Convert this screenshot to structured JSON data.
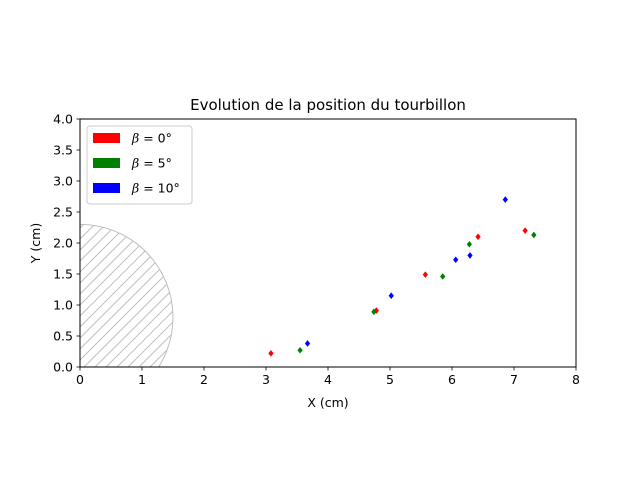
{
  "chart_data": {
    "type": "scatter",
    "title": "Evolution de la position du tourbillon",
    "xlabel": "X (cm)",
    "ylabel": "Y (cm)",
    "xlim": [
      0,
      8
    ],
    "ylim": [
      0,
      4.0
    ],
    "x_ticks": [
      "0",
      "1",
      "2",
      "3",
      "4",
      "5",
      "6",
      "7",
      "8"
    ],
    "y_ticks": [
      "0.0",
      "0.5",
      "1.0",
      "1.5",
      "2.0",
      "2.5",
      "3.0",
      "3.5",
      "4.0"
    ],
    "grid": false,
    "legend_position": "top-left",
    "obstacle": {
      "shape": "hatched circle",
      "center": [
        0,
        0.8
      ],
      "radius": 1.5,
      "color": "#bfbfbf"
    },
    "series": [
      {
        "name": "β = 0°",
        "name_symbol": "β",
        "name_suffix": " = 0°",
        "color": "#ff0000",
        "points": [
          [
            3.08,
            0.22
          ],
          [
            4.78,
            0.91
          ],
          [
            5.57,
            1.49
          ],
          [
            6.42,
            2.1
          ],
          [
            7.18,
            2.2
          ]
        ]
      },
      {
        "name": "β = 5°",
        "name_symbol": "β",
        "name_suffix": " = 5°",
        "color": "#008000",
        "points": [
          [
            3.55,
            0.27
          ],
          [
            4.74,
            0.89
          ],
          [
            5.85,
            1.46
          ],
          [
            6.28,
            1.98
          ],
          [
            7.32,
            2.13
          ]
        ]
      },
      {
        "name": "β = 10°",
        "name_symbol": "β",
        "name_suffix": " = 10°",
        "color": "#0000ff",
        "points": [
          [
            3.67,
            0.38
          ],
          [
            5.02,
            1.15
          ],
          [
            6.06,
            1.73
          ],
          [
            6.29,
            1.8
          ],
          [
            6.86,
            2.7
          ]
        ]
      }
    ]
  }
}
